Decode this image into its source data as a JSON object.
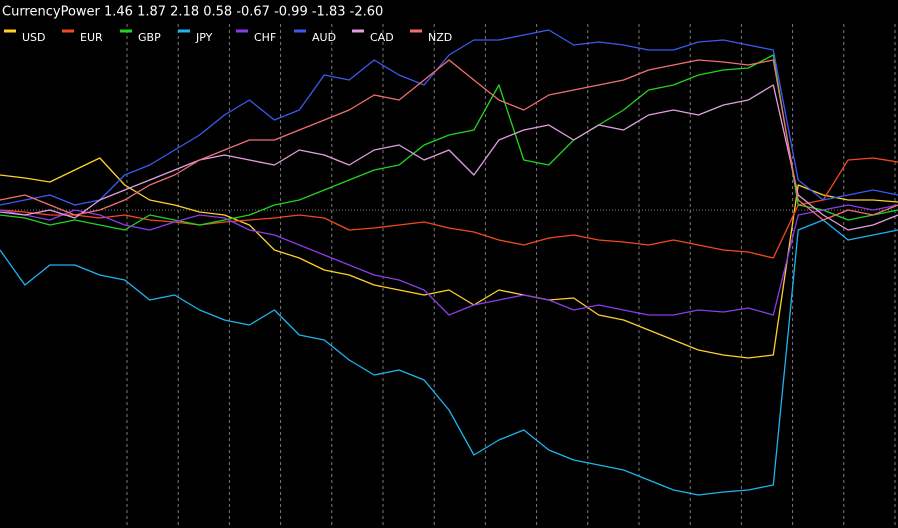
{
  "chart_data": {
    "type": "line",
    "title": "CurrencyPower 1.46 1.87 2.18 0.58 -0.67 -0.99 -1.83 -2.60",
    "categories": [
      null,
      null,
      null,
      null,
      null,
      null,
      null,
      null,
      null,
      null,
      null,
      null,
      null,
      null,
      null,
      null,
      null,
      null,
      null,
      null,
      null,
      null,
      null,
      null,
      null,
      null,
      null,
      null,
      null,
      null,
      null,
      null,
      null,
      null,
      null,
      null,
      null
    ],
    "ylim": [
      -12.72,
      8.4
    ],
    "series": [
      {
        "name": "USD",
        "color": "#ffd02a",
        "values": [
          1.4,
          1.28,
          1.12,
          1.6,
          2.08,
          1.0,
          0.4,
          0.2,
          -0.08,
          -0.2,
          -0.6,
          -1.6,
          -1.92,
          -2.4,
          -2.6,
          -3.0,
          -3.2,
          -3.4,
          -3.2,
          -3.8,
          -3.2,
          -3.4,
          -3.6,
          -3.52,
          -4.2,
          -4.4,
          -4.8,
          -5.2,
          -5.6,
          -5.8,
          -5.92,
          -5.8,
          1.0,
          0.6,
          0.4,
          0.4,
          0.32
        ]
      },
      {
        "name": "EUR",
        "color": "#f04a1e",
        "values": [
          0,
          -0.08,
          -0.2,
          -0.2,
          -0.32,
          -0.2,
          -0.4,
          -0.48,
          -0.6,
          -0.48,
          -0.4,
          -0.32,
          -0.2,
          -0.32,
          -0.8,
          -0.72,
          -0.6,
          -0.48,
          -0.72,
          -0.88,
          -1.2,
          -1.4,
          -1.12,
          -1.0,
          -1.2,
          -1.28,
          -1.4,
          -1.2,
          -1.4,
          -1.6,
          -1.68,
          -1.92,
          0.2,
          0.4,
          2.0,
          2.08,
          1.92
        ]
      },
      {
        "name": "GBP",
        "color": "#22d41e",
        "values": [
          -0.2,
          -0.32,
          -0.6,
          -0.4,
          -0.6,
          -0.8,
          -0.2,
          -0.4,
          -0.6,
          -0.4,
          -0.2,
          0.2,
          0.4,
          0.8,
          1.2,
          1.6,
          1.8,
          2.6,
          3.0,
          3.2,
          5.0,
          2.0,
          1.8,
          2.8,
          3.4,
          4.0,
          4.8,
          5.0,
          5.4,
          5.6,
          5.68,
          6.2,
          0.2,
          0,
          -0.4,
          -0.2,
          0
        ]
      },
      {
        "name": "JPY",
        "color": "#1eb4f0",
        "values": [
          -1.6,
          -3.0,
          -2.2,
          -2.2,
          -2.6,
          -2.8,
          -3.6,
          -3.4,
          -4.0,
          -4.4,
          -4.6,
          -4.0,
          -5.0,
          -5.2,
          -6.0,
          -6.6,
          -6.4,
          -6.8,
          -8.0,
          -9.8,
          -9.2,
          -8.8,
          -9.6,
          -10.0,
          -10.2,
          -10.4,
          -10.8,
          -11.2,
          -11.4,
          -11.28,
          -11.2,
          -11.0,
          -0.8,
          -0.4,
          -1.2,
          -1.0,
          -0.8
        ]
      },
      {
        "name": "CHF",
        "color": "#8a3ce6",
        "values": [
          0,
          -0.2,
          -0.4,
          0,
          -0.2,
          -0.6,
          -0.8,
          -0.48,
          -0.2,
          -0.32,
          -0.8,
          -1.0,
          -1.4,
          -1.8,
          -2.2,
          -2.6,
          -2.8,
          -3.2,
          -4.2,
          -3.8,
          -3.6,
          -3.4,
          -3.6,
          -4.0,
          -3.8,
          -4.0,
          -4.2,
          -4.2,
          -4.0,
          -4.08,
          -3.92,
          -4.2,
          -0.2,
          0,
          0.2,
          0,
          0.2
        ]
      },
      {
        "name": "AUD",
        "color": "#3c5af0",
        "values": [
          0.2,
          0.4,
          0.6,
          0.2,
          0.4,
          1.4,
          1.8,
          2.4,
          3.0,
          3.8,
          4.4,
          3.6,
          4.0,
          5.4,
          5.2,
          6.0,
          5.4,
          5.0,
          6.2,
          6.8,
          6.8,
          7.0,
          7.2,
          6.6,
          6.72,
          6.6,
          6.4,
          6.4,
          6.72,
          6.8,
          6.6,
          6.4,
          1.2,
          0.4,
          0.6,
          0.8,
          0.6
        ]
      },
      {
        "name": "CAD",
        "color": "#e0a0e0",
        "values": [
          -0.08,
          -0.2,
          0,
          -0.32,
          0.4,
          0.8,
          1.2,
          1.6,
          2.0,
          2.2,
          2.0,
          1.8,
          2.4,
          2.2,
          1.8,
          2.4,
          2.6,
          2.0,
          2.4,
          1.4,
          2.8,
          3.2,
          3.4,
          2.8,
          3.4,
          3.2,
          3.8,
          4.0,
          3.8,
          4.2,
          4.4,
          5.0,
          0.6,
          -0.2,
          -0.8,
          -0.6,
          -0.2
        ]
      },
      {
        "name": "NZD",
        "color": "#f07070",
        "values": [
          0.4,
          0.6,
          0.2,
          -0.2,
          0,
          0.4,
          1.0,
          1.4,
          2.0,
          2.4,
          2.8,
          2.8,
          3.2,
          3.6,
          4.0,
          4.6,
          4.4,
          5.2,
          6.0,
          5.2,
          4.4,
          4.0,
          4.6,
          4.8,
          5.0,
          5.2,
          5.6,
          5.8,
          6.0,
          5.92,
          5.8,
          6.0,
          0.4,
          -0.4,
          0,
          -0.2,
          0.2
        ]
      }
    ]
  }
}
